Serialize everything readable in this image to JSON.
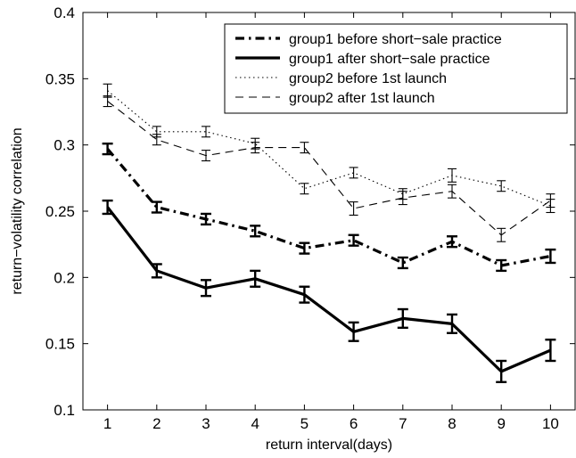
{
  "chart_data": {
    "type": "line",
    "title": "",
    "xlabel": "return interval(days)",
    "ylabel": "return−volatility correlation",
    "xlim": [
      0.5,
      10.5
    ],
    "ylim": [
      0.1,
      0.4
    ],
    "x": [
      1,
      2,
      3,
      4,
      5,
      6,
      7,
      8,
      9,
      10
    ],
    "x_ticks": [
      1,
      2,
      3,
      4,
      5,
      6,
      7,
      8,
      9,
      10
    ],
    "y_ticks": [
      0.1,
      0.15,
      0.2,
      0.25,
      0.3,
      0.35,
      0.4
    ],
    "y_tick_labels": [
      "0.1",
      "0.15",
      "0.2",
      "0.25",
      "0.3",
      "0.35",
      "0.4"
    ],
    "grid": false,
    "legend_position": "top-right",
    "series": [
      {
        "name": "group1 before short−sale practice",
        "style": "dash-dot",
        "weight": "bold",
        "color": "#000000",
        "values": [
          0.297,
          0.253,
          0.244,
          0.235,
          0.222,
          0.228,
          0.211,
          0.227,
          0.209,
          0.216
        ],
        "errors": [
          0.004,
          0.004,
          0.004,
          0.004,
          0.004,
          0.004,
          0.004,
          0.004,
          0.004,
          0.005
        ]
      },
      {
        "name": "group1 after short−sale practice",
        "style": "solid",
        "weight": "bold",
        "color": "#000000",
        "values": [
          0.253,
          0.205,
          0.192,
          0.199,
          0.187,
          0.159,
          0.169,
          0.165,
          0.129,
          0.145
        ],
        "errors": [
          0.005,
          0.005,
          0.006,
          0.006,
          0.006,
          0.007,
          0.007,
          0.007,
          0.008,
          0.008
        ]
      },
      {
        "name": "group2 before 1st launch",
        "style": "dotted",
        "weight": "normal",
        "color": "#000000",
        "values": [
          0.341,
          0.31,
          0.31,
          0.301,
          0.267,
          0.279,
          0.263,
          0.277,
          0.269,
          0.254
        ],
        "errors": [
          0.005,
          0.004,
          0.004,
          0.004,
          0.004,
          0.004,
          0.004,
          0.005,
          0.004,
          0.005
        ]
      },
      {
        "name": "group2 after 1st launch",
        "style": "dashed",
        "weight": "normal",
        "color": "#000000",
        "values": [
          0.333,
          0.304,
          0.292,
          0.298,
          0.298,
          0.252,
          0.26,
          0.265,
          0.232,
          0.258
        ],
        "errors": [
          0.004,
          0.004,
          0.004,
          0.004,
          0.004,
          0.005,
          0.005,
          0.005,
          0.005,
          0.005
        ]
      }
    ]
  }
}
